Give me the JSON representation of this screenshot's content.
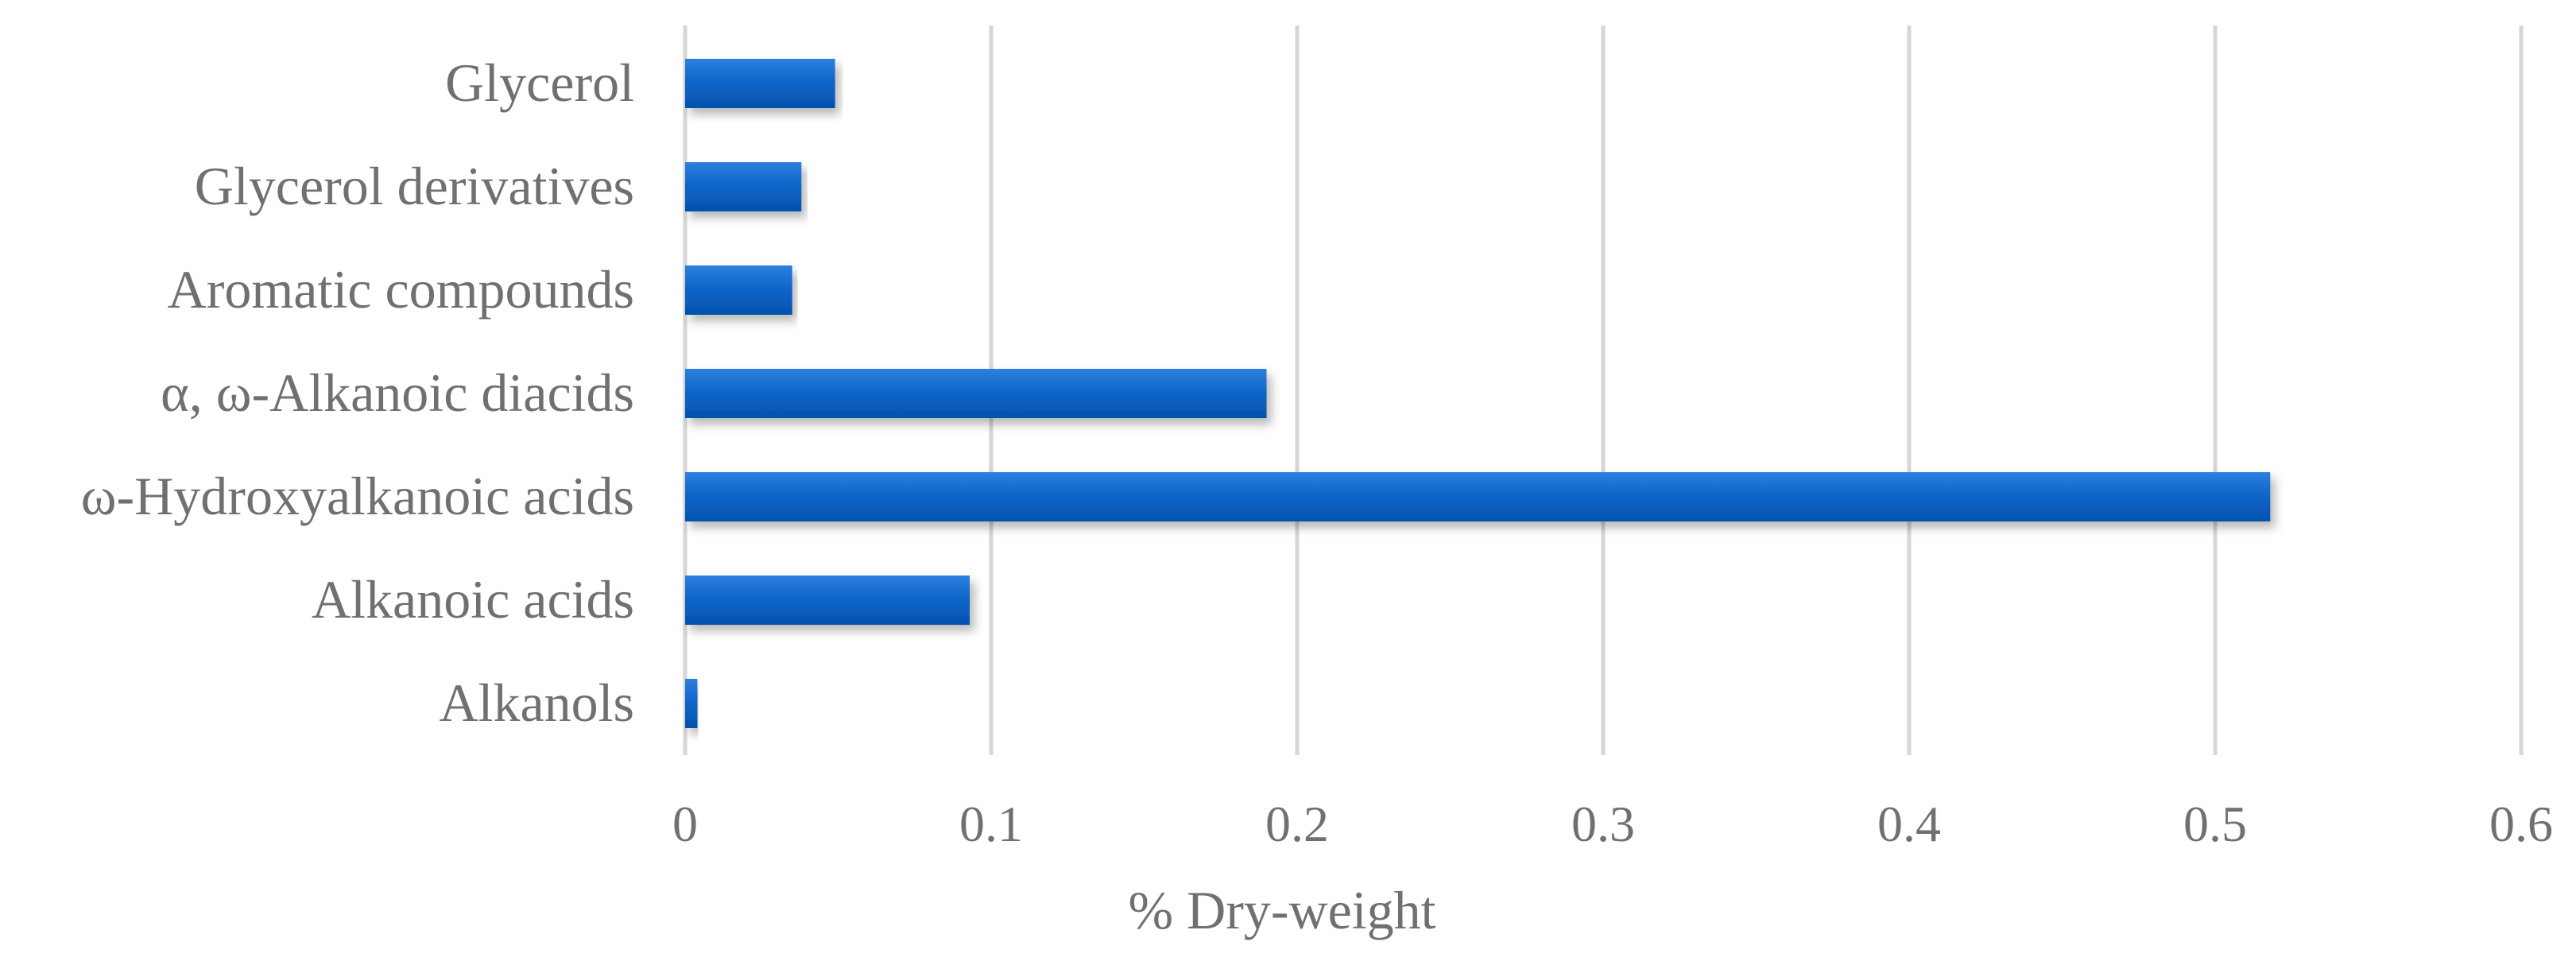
{
  "chart_data": {
    "type": "bar",
    "orientation": "horizontal",
    "categories": [
      "Glycerol ",
      "Glycerol derivatives",
      "Aromatic compounds",
      "α, ω-Alkanoic diacids",
      "ω-Hydroxyalkanoic acids",
      "Alkanoic acids",
      "Alkanols"
    ],
    "values": [
      0.049,
      0.038,
      0.035,
      0.19,
      0.518,
      0.093,
      0.004
    ],
    "title": "",
    "xlabel": "% Dry-weight",
    "ylabel": "",
    "xlim": [
      0,
      0.6
    ],
    "xticks": [
      "0",
      "0.1",
      "0.2",
      "0.3",
      "0.4",
      "0.5",
      "0.6"
    ],
    "grid": "vertical",
    "legend": "none",
    "bar_color": "#0a64c8",
    "bar_highlight": "#3d8de6"
  }
}
